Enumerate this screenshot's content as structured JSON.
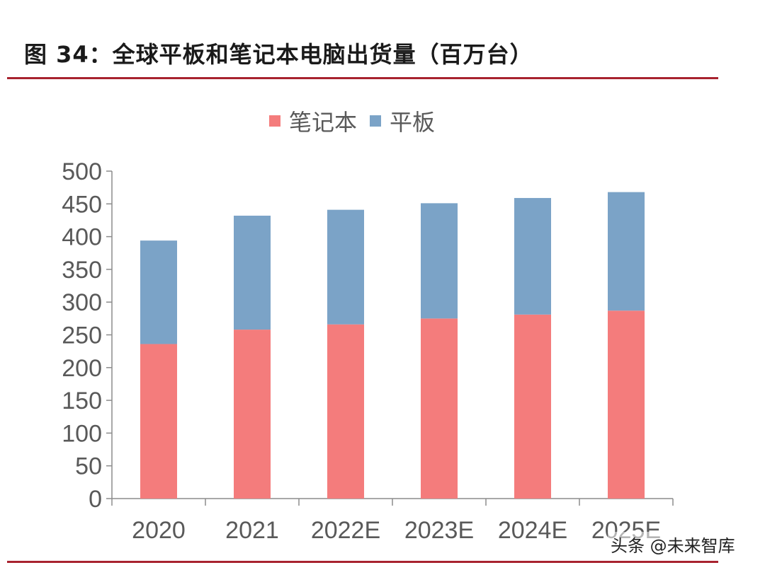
{
  "title": "图 34：全球平板和笔记本电脑出货量（百万台）",
  "watermark": "头条 @未来智库",
  "colors": {
    "accent_rule": "#a8232f",
    "notebook": "#f47c7c",
    "tablet": "#7ba3c7"
  },
  "chart_data": {
    "type": "bar",
    "stacked": true,
    "title": "全球平板和笔记本电脑出货量（百万台）",
    "categories": [
      "2020",
      "2021",
      "2022E",
      "2023E",
      "2024E",
      "2025E"
    ],
    "series": [
      {
        "name": "笔记本",
        "values": [
          236,
          258,
          266,
          275,
          281,
          287
        ]
      },
      {
        "name": "平板",
        "values": [
          158,
          174,
          175,
          176,
          178,
          181
        ]
      }
    ],
    "ylim": [
      0,
      500
    ],
    "yticks": [
      0,
      50,
      100,
      150,
      200,
      250,
      300,
      350,
      400,
      450,
      500
    ],
    "xlabel": "",
    "ylabel": "",
    "legend_position": "top-center",
    "grid": false
  }
}
